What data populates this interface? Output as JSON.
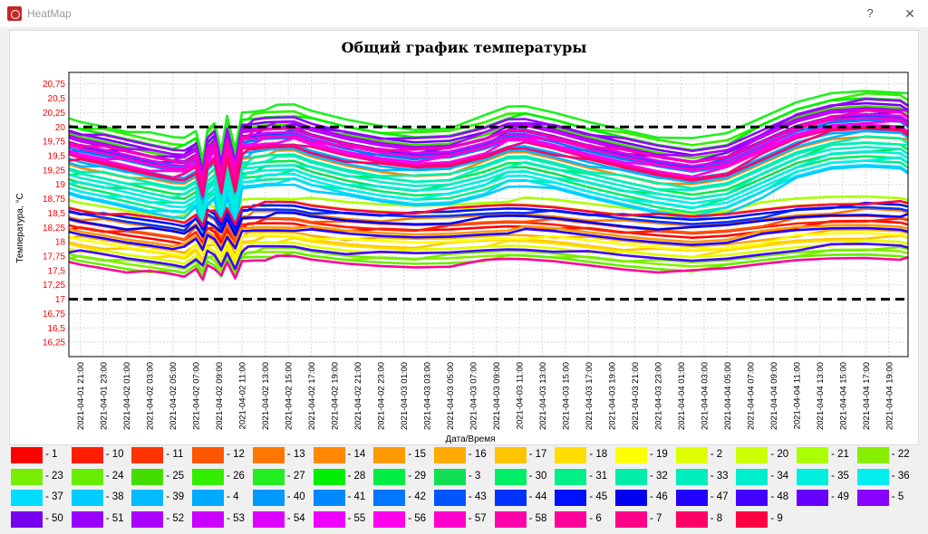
{
  "window": {
    "title": "HeatMap",
    "help_label": "?",
    "close_label": "✕"
  },
  "chart_data": {
    "type": "line",
    "title": "Общий график температуры",
    "xlabel": "Дата/Время",
    "ylabel": "Температура, °C",
    "ylim": [
      16.0,
      20.95
    ],
    "yticks": [
      "16,25",
      "16,5",
      "16,75",
      "17",
      "17,25",
      "17,5",
      "17,75",
      "18",
      "18,25",
      "18,5",
      "18,75",
      "19",
      "19,25",
      "19,5",
      "19,75",
      "20",
      "20,25",
      "20,5",
      "20,75"
    ],
    "xticks": [
      "2021-04-01 21:00",
      "2021-04-01 23:00",
      "2021-04-02 01:00",
      "2021-04-02 03:00",
      "2021-04-02 05:00",
      "2021-04-02 07:00",
      "2021-04-02 09:00",
      "2021-04-02 11:00",
      "2021-04-02 13:00",
      "2021-04-02 15:00",
      "2021-04-02 17:00",
      "2021-04-02 19:00",
      "2021-04-02 21:00",
      "2021-04-02 23:00",
      "2021-04-03 01:00",
      "2021-04-03 03:00",
      "2021-04-03 05:00",
      "2021-04-03 07:00",
      "2021-04-03 09:00",
      "2021-04-03 11:00",
      "2021-04-03 13:00",
      "2021-04-03 15:00",
      "2021-04-03 17:00",
      "2021-04-03 19:00",
      "2021-04-03 21:00",
      "2021-04-03 23:00",
      "2021-04-04 01:00",
      "2021-04-04 03:00",
      "2021-04-04 05:00",
      "2021-04-04 07:00",
      "2021-04-04 09:00",
      "2021-04-04 11:00",
      "2021-04-04 13:00",
      "2021-04-04 15:00",
      "2021-04-04 17:00",
      "2021-04-04 19:00"
    ],
    "x_range": [
      "2021-04-01 20:00",
      "2021-04-04 20:40"
    ],
    "reference_lines": [
      20,
      17
    ],
    "grid": true,
    "legend_position": "bottom",
    "pattern_time_hours": [
      0,
      1,
      3,
      5,
      7,
      9,
      10,
      11,
      11.6,
      12,
      12.6,
      13.2,
      13.7,
      14.4,
      15,
      15.5,
      16,
      17,
      18,
      19.5,
      21,
      24,
      27,
      30,
      33,
      36,
      38,
      39.5,
      42,
      45,
      48,
      51,
      54,
      57,
      60,
      63,
      66,
      69,
      72,
      72.7
    ],
    "pattern_shape_upper": [
      0.0,
      -0.05,
      -0.12,
      -0.2,
      -0.28,
      -0.35,
      -0.35,
      -0.22,
      -0.7,
      -0.18,
      -0.05,
      -0.6,
      0.02,
      -0.55,
      0.1,
      0.12,
      0.14,
      0.18,
      0.2,
      0.22,
      0.12,
      -0.02,
      -0.12,
      -0.18,
      -0.14,
      0.02,
      0.18,
      0.2,
      0.1,
      -0.05,
      -0.18,
      -0.3,
      -0.38,
      -0.28,
      0.0,
      0.28,
      0.45,
      0.5,
      0.48,
      0.4
    ],
    "pattern_shape_lower": [
      0.0,
      -0.06,
      -0.15,
      -0.25,
      -0.32,
      -0.4,
      -0.45,
      -0.2,
      -0.5,
      -0.05,
      -0.15,
      -0.45,
      -0.05,
      -0.5,
      0.02,
      0.05,
      0.08,
      0.1,
      0.12,
      0.13,
      0.05,
      -0.05,
      -0.1,
      -0.12,
      -0.08,
      0.0,
      0.05,
      0.06,
      0.02,
      -0.08,
      -0.18,
      -0.25,
      -0.3,
      -0.22,
      -0.08,
      0.05,
      0.12,
      0.15,
      0.12,
      0.08
    ],
    "series": [
      {
        "name": "- 1",
        "color": "#ff0000",
        "base": 18.25,
        "amp": 0.6
      },
      {
        "name": "- 10",
        "color": "#ff1e00",
        "base": 18.3,
        "amp": 0.6
      },
      {
        "name": "- 11",
        "color": "#ff3300",
        "base": 19.55,
        "amp": 1.0
      },
      {
        "name": "- 12",
        "color": "#ff5500",
        "base": 18.35,
        "amp": 0.6
      },
      {
        "name": "- 13",
        "color": "#ff7700",
        "base": 18.45,
        "amp": 0.6
      },
      {
        "name": "- 14",
        "color": "#ff8800",
        "base": 19.35,
        "amp": 1.0
      },
      {
        "name": "- 15",
        "color": "#ff9900",
        "base": 18.2,
        "amp": 0.6
      },
      {
        "name": "- 16",
        "color": "#ffaa00",
        "base": 18.1,
        "amp": 0.6
      },
      {
        "name": "- 17",
        "color": "#ffc400",
        "base": 18.0,
        "amp": 0.6
      },
      {
        "name": "- 18",
        "color": "#ffdd00",
        "base": 17.95,
        "amp": 0.6
      },
      {
        "name": "- 19",
        "color": "#ffff00",
        "base": 18.05,
        "amp": 0.6
      },
      {
        "name": "- 2",
        "color": "#ddff00",
        "base": 17.9,
        "amp": 0.6
      },
      {
        "name": "- 20",
        "color": "#ccff00",
        "base": 18.6,
        "amp": 0.6
      },
      {
        "name": "- 21",
        "color": "#aaff00",
        "base": 18.7,
        "amp": 0.6
      },
      {
        "name": "- 22",
        "color": "#88ee00",
        "base": 17.75,
        "amp": 0.6
      },
      {
        "name": "- 23",
        "color": "#77ee00",
        "base": 17.8,
        "amp": 0.6
      },
      {
        "name": "- 24",
        "color": "#66ee00",
        "base": 17.7,
        "amp": 0.6
      },
      {
        "name": "- 25",
        "color": "#44dd00",
        "base": 19.85,
        "amp": 1.0
      },
      {
        "name": "- 26",
        "color": "#33ee00",
        "base": 20.05,
        "amp": 1.0
      },
      {
        "name": "- 27",
        "color": "#22ee22",
        "base": 20.15,
        "amp": 1.0
      },
      {
        "name": "- 28",
        "color": "#00ee00",
        "base": 20.0,
        "amp": 1.0
      },
      {
        "name": "- 29",
        "color": "#00ee44",
        "base": 19.2,
        "amp": 1.0
      },
      {
        "name": "- 3",
        "color": "#11dd55",
        "base": 19.1,
        "amp": 1.0
      },
      {
        "name": "- 30",
        "color": "#00ee66",
        "base": 19.0,
        "amp": 1.0
      },
      {
        "name": "- 31",
        "color": "#00ee88",
        "base": 18.9,
        "amp": 1.0
      },
      {
        "name": "- 32",
        "color": "#00eeaa",
        "base": 19.3,
        "amp": 1.0
      },
      {
        "name": "- 33",
        "color": "#00eebb",
        "base": 19.25,
        "amp": 1.0
      },
      {
        "name": "- 34",
        "color": "#00eecc",
        "base": 19.15,
        "amp": 1.0
      },
      {
        "name": "- 35",
        "color": "#00eedd",
        "base": 19.05,
        "amp": 1.0
      },
      {
        "name": "- 36",
        "color": "#00eeee",
        "base": 18.95,
        "amp": 1.0
      },
      {
        "name": "- 37",
        "color": "#00ddff",
        "base": 18.85,
        "amp": 1.0
      },
      {
        "name": "- 38",
        "color": "#00ccff",
        "base": 18.8,
        "amp": 1.0
      },
      {
        "name": "- 39",
        "color": "#00bbff",
        "base": 19.4,
        "amp": 1.0
      },
      {
        "name": "- 4",
        "color": "#00aaff",
        "base": 19.45,
        "amp": 1.0
      },
      {
        "name": "- 40",
        "color": "#0099ff",
        "base": 19.5,
        "amp": 1.0
      },
      {
        "name": "- 41",
        "color": "#0088ff",
        "base": 19.6,
        "amp": 1.0
      },
      {
        "name": "- 42",
        "color": "#0077ff",
        "base": 19.65,
        "amp": 1.0
      },
      {
        "name": "- 43",
        "color": "#0055ff",
        "base": 19.7,
        "amp": 1.0
      },
      {
        "name": "- 44",
        "color": "#0033ff",
        "base": 18.5,
        "amp": 0.6
      },
      {
        "name": "- 45",
        "color": "#0011ff",
        "base": 18.55,
        "amp": 0.6
      },
      {
        "name": "- 46",
        "color": "#0000ee",
        "base": 18.4,
        "amp": 0.6
      },
      {
        "name": "- 47",
        "color": "#2200ff",
        "base": 18.15,
        "amp": 0.6
      },
      {
        "name": "- 48",
        "color": "#4400ff",
        "base": 17.85,
        "amp": 0.6
      },
      {
        "name": "- 49",
        "color": "#6600ff",
        "base": 19.75,
        "amp": 1.0
      },
      {
        "name": "- 5",
        "color": "#8800ff",
        "base": 19.8,
        "amp": 1.0
      },
      {
        "name": "- 50",
        "color": "#7700ee",
        "base": 19.9,
        "amp": 1.0
      },
      {
        "name": "- 51",
        "color": "#9900ff",
        "base": 19.95,
        "amp": 1.0
      },
      {
        "name": "- 52",
        "color": "#aa00ff",
        "base": 19.85,
        "amp": 1.0
      },
      {
        "name": "- 53",
        "color": "#cc00ff",
        "base": 19.8,
        "amp": 1.0
      },
      {
        "name": "- 54",
        "color": "#dd00ff",
        "base": 19.7,
        "amp": 1.0
      },
      {
        "name": "- 55",
        "color": "#ee00ff",
        "base": 19.6,
        "amp": 1.0
      },
      {
        "name": "- 56",
        "color": "#ff00ee",
        "base": 19.55,
        "amp": 1.0
      },
      {
        "name": "- 57",
        "color": "#ff00cc",
        "base": 19.65,
        "amp": 1.0
      },
      {
        "name": "- 58",
        "color": "#ff00aa",
        "base": 19.75,
        "amp": 1.0
      },
      {
        "name": "- 6",
        "color": "#ff0099",
        "base": 17.65,
        "amp": 0.6
      },
      {
        "name": "- 7",
        "color": "#ff0088",
        "base": 19.5,
        "amp": 1.0
      },
      {
        "name": "- 8",
        "color": "#ff0066",
        "base": 19.45,
        "amp": 1.0
      },
      {
        "name": "- 9",
        "color": "#ff0044",
        "base": 18.6,
        "amp": 0.6
      }
    ]
  }
}
